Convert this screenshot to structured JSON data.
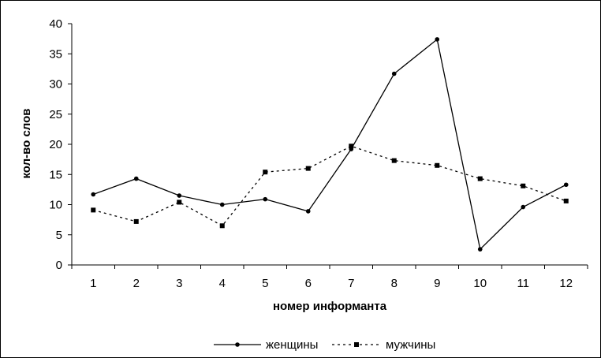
{
  "chart_data": {
    "type": "line",
    "title": "",
    "xlabel": "номер информанта",
    "ylabel": "кол-во слов",
    "categories": [
      "1",
      "2",
      "3",
      "4",
      "5",
      "6",
      "7",
      "8",
      "9",
      "10",
      "11",
      "12"
    ],
    "ylim": [
      0,
      40
    ],
    "yticks": [
      0,
      5,
      10,
      15,
      20,
      25,
      30,
      35,
      40
    ],
    "grid": false,
    "legend_position": "bottom",
    "series": [
      {
        "name": "женщины",
        "values": [
          11.7,
          14.3,
          11.5,
          10.0,
          10.9,
          8.9,
          19.2,
          31.7,
          37.4,
          2.6,
          9.6,
          13.3
        ],
        "line_style": "solid",
        "marker": "circle",
        "color": "#000000"
      },
      {
        "name": "мужчины",
        "values": [
          9.1,
          7.2,
          10.4,
          6.5,
          15.4,
          16.0,
          19.7,
          17.3,
          16.5,
          14.3,
          13.1,
          10.6
        ],
        "line_style": "dotted",
        "marker": "square",
        "color": "#000000"
      }
    ]
  }
}
